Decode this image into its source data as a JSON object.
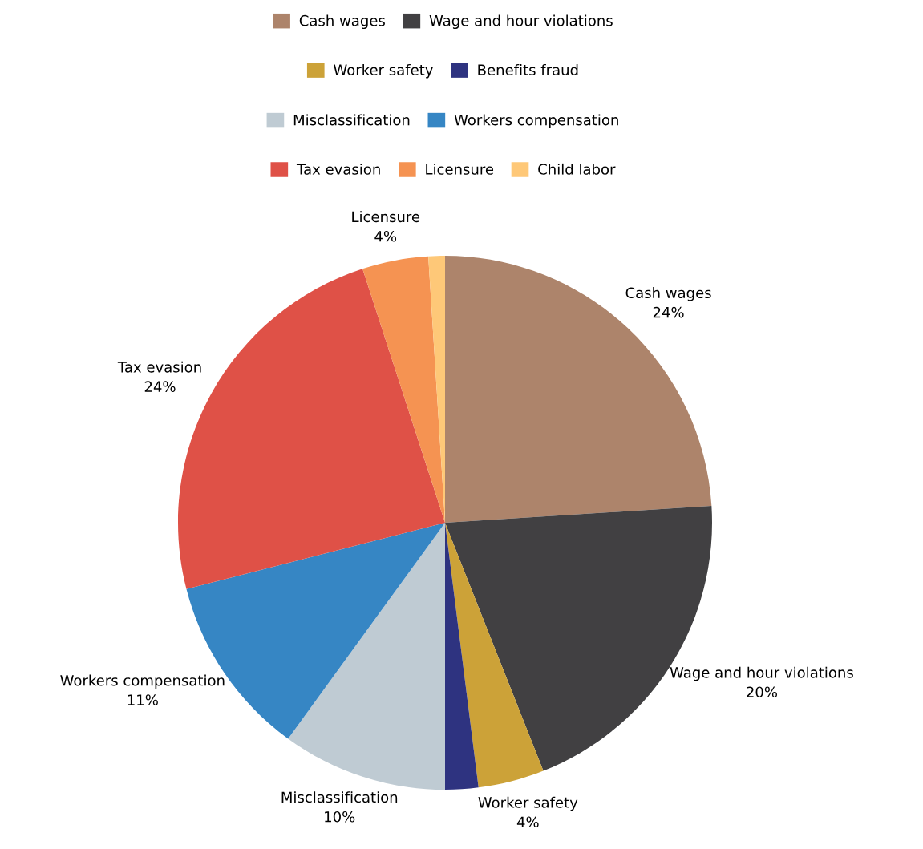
{
  "chart_data": {
    "type": "pie",
    "categories": [
      "Cash wages",
      "Wage and hour violations",
      "Worker safety",
      "Benefits fraud",
      "Misclassification",
      "Workers compensation",
      "Tax evasion",
      "Licensure",
      "Child labor"
    ],
    "values": [
      24,
      20,
      4,
      2,
      10,
      11,
      24,
      4,
      1
    ],
    "colors": [
      "#ad846b",
      "#414042",
      "#cca238",
      "#2e3380",
      "#bfcbd3",
      "#3686c4",
      "#df5147",
      "#f59352",
      "#fec878"
    ],
    "value_labels": [
      "24%",
      "20%",
      "4%",
      null,
      "10%",
      "11%",
      "24%",
      "4%",
      null
    ],
    "legend": "top"
  }
}
